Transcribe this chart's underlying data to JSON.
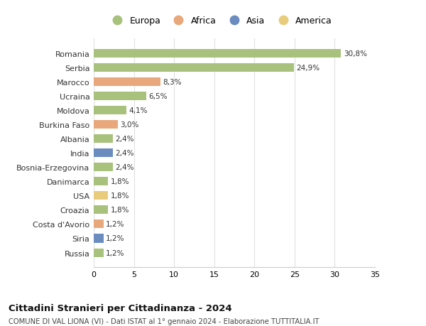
{
  "countries": [
    "Romania",
    "Serbia",
    "Marocco",
    "Ucraina",
    "Moldova",
    "Burkina Faso",
    "Albania",
    "India",
    "Bosnia-Erzegovina",
    "Danimarca",
    "USA",
    "Croazia",
    "Costa d'Avorio",
    "Siria",
    "Russia"
  ],
  "values": [
    30.8,
    24.9,
    8.3,
    6.5,
    4.1,
    3.0,
    2.4,
    2.4,
    2.4,
    1.8,
    1.8,
    1.8,
    1.2,
    1.2,
    1.2
  ],
  "labels": [
    "30,8%",
    "24,9%",
    "8,3%",
    "6,5%",
    "4,1%",
    "3,0%",
    "2,4%",
    "2,4%",
    "2,4%",
    "1,8%",
    "1,8%",
    "1,8%",
    "1,2%",
    "1,2%",
    "1,2%"
  ],
  "continents": [
    "Europa",
    "Europa",
    "Africa",
    "Europa",
    "Europa",
    "Africa",
    "Europa",
    "Asia",
    "Europa",
    "Europa",
    "America",
    "Europa",
    "Africa",
    "Asia",
    "Europa"
  ],
  "colors": {
    "Europa": "#a8c17c",
    "Africa": "#e8a87c",
    "Asia": "#6b8cbf",
    "America": "#e8cc7c"
  },
  "legend_order": [
    "Europa",
    "Africa",
    "Asia",
    "America"
  ],
  "title": "Cittadini Stranieri per Cittadinanza - 2024",
  "subtitle": "COMUNE DI VAL LIONA (VI) - Dati ISTAT al 1° gennaio 2024 - Elaborazione TUTTITALIA.IT",
  "xlim": [
    0,
    35
  ],
  "xticks": [
    0,
    5,
    10,
    15,
    20,
    25,
    30,
    35
  ],
  "bg_color": "#ffffff",
  "grid_color": "#e0e0e0",
  "bar_height": 0.6
}
